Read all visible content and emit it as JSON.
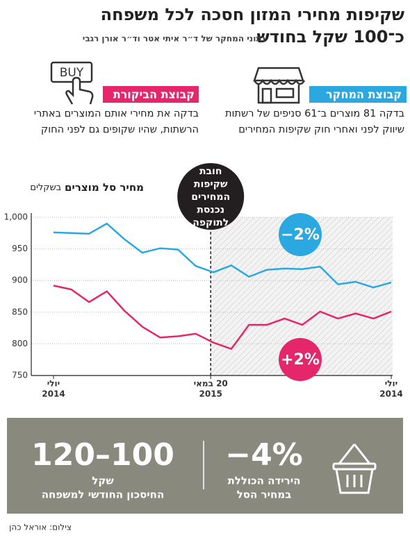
{
  "header": {
    "title": "שקיפות מחירי המזון חסכה לכל משפחה",
    "subtitle": "כ־100 שקל בחודש",
    "source": "נתוני המחקר של ד״ר איתי אטר וד״ר אורן רגבי"
  },
  "groups": [
    {
      "label": "קבוצת המחקר",
      "lines": [
        "בדקה 81 מוצרים ב־61 סניפים של רשתות",
        "שיווק לפני ואחרי חוק שקיפות המחירים"
      ]
    },
    {
      "label": "קבוצת הביקורת",
      "icon_text": "BUY",
      "lines": [
        "בדקה את מחירי אותם המוצרים באתרי",
        "הרשתות, שהיו שקופים גם לפני החוק"
      ]
    }
  ],
  "chart_data": {
    "type": "line",
    "ylabel": {
      "main": "מחיר סל מוצרים",
      "unit": "בשקלים"
    },
    "categories": [
      [
        "יולי",
        "2014"
      ],
      null,
      null,
      null,
      null,
      null,
      null,
      null,
      null,
      [
        "20 במאי",
        "2015"
      ],
      null,
      null,
      null,
      null,
      null,
      null,
      null,
      null,
      null,
      [
        "יולי",
        "2014"
      ]
    ],
    "series": [
      {
        "name": "קבוצת המחקר",
        "color": "#2ba8e0",
        "change": "−2%",
        "values": [
          976,
          975,
          974,
          990,
          965,
          944,
          951,
          949,
          923,
          913,
          924,
          906,
          917,
          919,
          918,
          922,
          894,
          898,
          889,
          897
        ]
      },
      {
        "name": "קבוצת הביקורת",
        "color": "#e6266a",
        "change": "+2%",
        "values": [
          892,
          886,
          866,
          883,
          852,
          827,
          810,
          812,
          816,
          802,
          792,
          830,
          830,
          840,
          830,
          851,
          840,
          848,
          840,
          851
        ]
      }
    ],
    "ylim": [
      750,
      1000
    ],
    "yticks": [
      750,
      800,
      850,
      900,
      950,
      {
        "value": 1000,
        "label": "1,000"
      }
    ],
    "grid": true,
    "event": {
      "lines": [
        "חובת",
        "שקיפות",
        "המחירים",
        "נכנסת",
        "לתוקפה"
      ]
    }
  },
  "stats": [
    {
      "value": "−4%",
      "lines": [
        "הירידה הכוללת",
        "במחיר הסל"
      ]
    },
    {
      "value": "120–100",
      "lines": [
        "שקל",
        "החיסכון החודשי למשפחה"
      ]
    }
  ],
  "credit": "צילום: אוראל כהן"
}
